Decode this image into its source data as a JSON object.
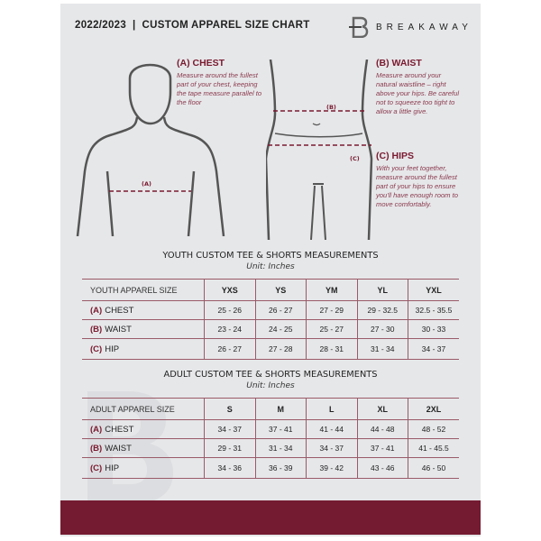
{
  "header": {
    "title": "2022/2023  |  CUSTOM APPAREL SIZE CHART",
    "brand": "BREAKAWAY"
  },
  "measure": {
    "chest": {
      "title": "(A) CHEST",
      "text": "Measure around the fullest part of your chest, keeping the tape measure parallel to the floor",
      "mark": "(A)"
    },
    "waist": {
      "title": "(B) WAIST",
      "text": "Measure around your natural waistline – right above your hips. Be careful not to squeeze too tight to allow a little give.",
      "mark": "(B)"
    },
    "hips": {
      "title": "(C) HIPS",
      "text": "With your feet together, measure around the fullest part of your hips to ensure you'll have enough room to move comfortably.",
      "mark": "(C)"
    }
  },
  "youth": {
    "title": "YOUTH CUSTOM TEE & SHORTS MEASUREMENTS",
    "unit": "Unit: Inches",
    "header": [
      "YOUTH APPAREL SIZE",
      "YXS",
      "YS",
      "YM",
      "YL",
      "YXL"
    ],
    "rows": [
      {
        "letter": "(A)",
        "label": "CHEST",
        "values": [
          "25 - 26",
          "26 - 27",
          "27 - 29",
          "29 - 32.5",
          "32.5 - 35.5"
        ]
      },
      {
        "letter": "(B)",
        "label": "WAIST",
        "values": [
          "23 - 24",
          "24 - 25",
          "25 - 27",
          "27 - 30",
          "30 - 33"
        ]
      },
      {
        "letter": "(C)",
        "label": "HIP",
        "values": [
          "26 - 27",
          "27 - 28",
          "28 - 31",
          "31 - 34",
          "34 - 37"
        ]
      }
    ]
  },
  "adult": {
    "title": "ADULT CUSTOM TEE & SHORTS MEASUREMENTS",
    "unit": "Unit: Inches",
    "header": [
      "ADULT APPAREL SIZE",
      "S",
      "M",
      "L",
      "XL",
      "2XL"
    ],
    "rows": [
      {
        "letter": "(A)",
        "label": "CHEST",
        "values": [
          "34 - 37",
          "37 - 41",
          "41 - 44",
          "44 - 48",
          "48 - 52"
        ]
      },
      {
        "letter": "(B)",
        "label": "WAIST",
        "values": [
          "29 - 31",
          "31 - 34",
          "34 - 37",
          "37 - 41",
          "41 - 45.5"
        ]
      },
      {
        "letter": "(C)",
        "label": "HIP",
        "values": [
          "34 - 36",
          "36 - 39",
          "39 - 42",
          "43 - 46",
          "46 - 50"
        ]
      }
    ]
  },
  "colors": {
    "accent": "#741b31",
    "panel": "#e6e7e9"
  }
}
